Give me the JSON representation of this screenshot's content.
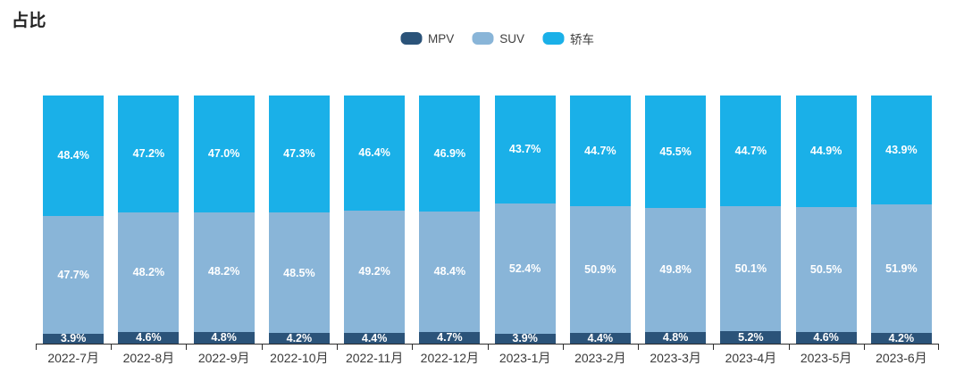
{
  "title": "占比",
  "legend": [
    {
      "label": "MPV",
      "color": "#2B5379"
    },
    {
      "label": "SUV",
      "color": "#89B5D8"
    },
    {
      "label": "轿车",
      "color": "#1AB0E8"
    }
  ],
  "chart_data": {
    "type": "bar",
    "stacked": true,
    "percent_stacked": true,
    "title": "占比",
    "xlabel": "",
    "ylabel": "",
    "ylim": [
      0,
      100
    ],
    "grid": false,
    "legend_position": "top-center",
    "label_format": "{value}%",
    "categories": [
      "2022-7月",
      "2022-8月",
      "2022-9月",
      "2022-10月",
      "2022-11月",
      "2022-12月",
      "2023-1月",
      "2023-2月",
      "2023-3月",
      "2023-4月",
      "2023-5月",
      "2023-6月"
    ],
    "series": [
      {
        "name": "MPV",
        "key": "mpv",
        "color": "#2B5379",
        "values": [
          3.9,
          4.6,
          4.8,
          4.2,
          4.4,
          4.7,
          3.9,
          4.4,
          4.8,
          5.2,
          4.6,
          4.2
        ]
      },
      {
        "name": "SUV",
        "key": "suv",
        "color": "#89B5D8",
        "values": [
          47.7,
          48.2,
          48.2,
          48.5,
          49.2,
          48.4,
          52.4,
          50.9,
          49.8,
          50.1,
          50.5,
          51.9
        ]
      },
      {
        "name": "轿车",
        "key": "sedan",
        "color": "#1AB0E8",
        "values": [
          48.4,
          47.2,
          47.0,
          47.3,
          46.4,
          46.9,
          43.7,
          44.7,
          45.5,
          44.7,
          44.9,
          43.9
        ]
      }
    ]
  }
}
